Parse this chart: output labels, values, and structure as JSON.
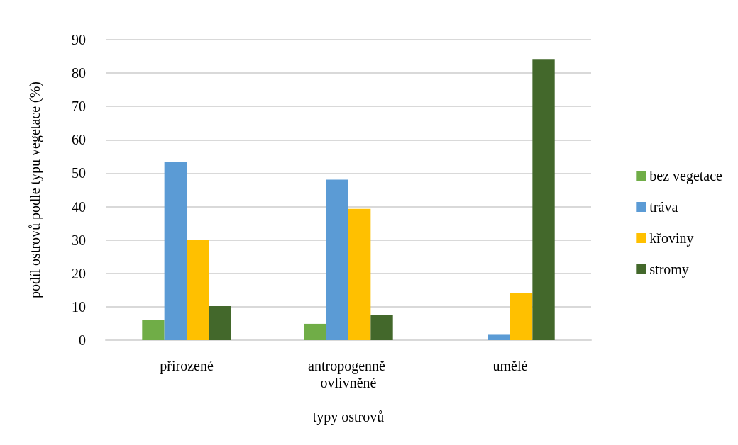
{
  "chart_data": {
    "type": "bar",
    "xlabel": "typy ostrovů",
    "ylabel": "podíl ostrovů podle typu vegetace (%)",
    "categories": [
      "přirozené",
      "antropogenně ovlivněné",
      "umělé"
    ],
    "series": [
      {
        "name": "bez vegetace",
        "color": "#70ad47",
        "values": [
          6.1,
          4.9,
          0
        ]
      },
      {
        "name": "tráva",
        "color": "#5b9bd5",
        "values": [
          53.4,
          48.1,
          1.6
        ]
      },
      {
        "name": "křoviny",
        "color": "#ffc000",
        "values": [
          30,
          39.3,
          14.1
        ]
      },
      {
        "name": "stromy",
        "color": "#43682b",
        "values": [
          10.2,
          7.5,
          84.2
        ]
      }
    ],
    "ylim": [
      0,
      90
    ],
    "yticks": [
      0,
      10,
      20,
      30,
      40,
      50,
      60,
      70,
      80,
      90
    ],
    "grid": "y",
    "legend": "right"
  }
}
